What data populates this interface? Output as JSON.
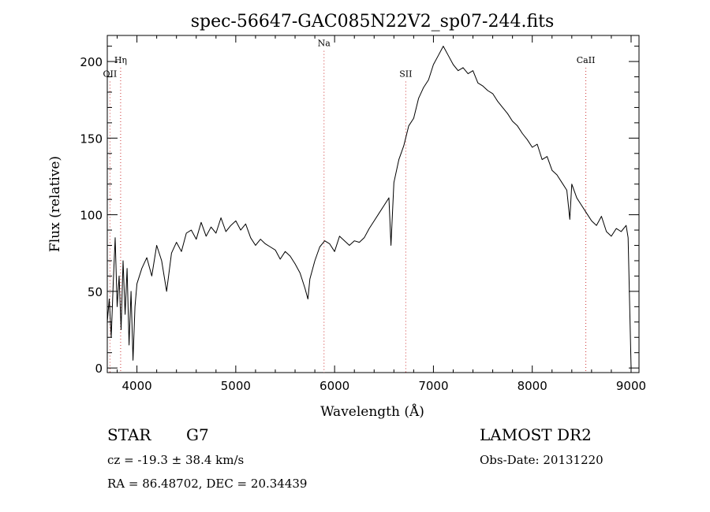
{
  "chart_data": {
    "type": "line",
    "title": "spec-56647-GAC085N22V2_sp07-244.fits",
    "xlabel": "Wavelength (Å)",
    "ylabel": "Flux (relative)",
    "xlim": [
      3700,
      9080
    ],
    "ylim": [
      -3,
      217
    ],
    "xticks": [
      4000,
      5000,
      6000,
      7000,
      8000,
      9000
    ],
    "yticks": [
      0,
      50,
      100,
      150,
      200
    ],
    "grid": false,
    "line_color": "#000000",
    "marker_line_color": "#cc3333",
    "spectral_lines": [
      {
        "label": "OII",
        "wavelength": 3727,
        "label_flux": 190
      },
      {
        "label": "Hη",
        "wavelength": 3835,
        "label_flux": 199
      },
      {
        "label": "Na",
        "wavelength": 5893,
        "label_flux": 210
      },
      {
        "label": "SII",
        "wavelength": 6720,
        "label_flux": 190
      },
      {
        "label": "CaII",
        "wavelength": 8542,
        "label_flux": 199
      }
    ],
    "series": [
      {
        "x": [
          3700,
          3720,
          3740,
          3760,
          3780,
          3800,
          3820,
          3840,
          3860,
          3880,
          3900,
          3920,
          3940,
          3960,
          3980,
          4000,
          4050,
          4100,
          4150,
          4200,
          4250,
          4300,
          4350,
          4400,
          4450,
          4500,
          4550,
          4600,
          4650,
          4700,
          4750,
          4800,
          4850,
          4900,
          4950,
          5000,
          5050,
          5100,
          5150,
          5200,
          5250,
          5300,
          5350,
          5400,
          5450,
          5500,
          5550,
          5600,
          5650,
          5700,
          5730,
          5750,
          5800,
          5850,
          5900,
          5950,
          6000,
          6050,
          6100,
          6150,
          6200,
          6250,
          6300,
          6350,
          6400,
          6450,
          6500,
          6550,
          6570,
          6600,
          6650,
          6700,
          6750,
          6800,
          6850,
          6900,
          6950,
          7000,
          7050,
          7100,
          7150,
          7200,
          7250,
          7300,
          7350,
          7400,
          7450,
          7500,
          7550,
          7600,
          7650,
          7700,
          7750,
          7800,
          7850,
          7900,
          7950,
          8000,
          8050,
          8100,
          8150,
          8200,
          8250,
          8300,
          8350,
          8380,
          8400,
          8450,
          8500,
          8550,
          8600,
          8650,
          8700,
          8750,
          8800,
          8850,
          8900,
          8950,
          8970,
          9000
        ],
        "y": [
          30,
          45,
          20,
          55,
          85,
          40,
          60,
          25,
          70,
          35,
          65,
          15,
          50,
          5,
          40,
          55,
          65,
          72,
          60,
          80,
          70,
          50,
          75,
          82,
          76,
          88,
          90,
          84,
          95,
          86,
          92,
          88,
          98,
          89,
          93,
          96,
          90,
          94,
          85,
          80,
          84,
          81,
          79,
          77,
          71,
          76,
          73,
          68,
          62,
          52,
          45,
          58,
          70,
          79,
          83,
          81,
          76,
          86,
          83,
          80,
          83,
          82,
          85,
          91,
          96,
          101,
          106,
          111,
          80,
          121,
          136,
          145,
          158,
          163,
          176,
          183,
          188,
          198,
          204,
          210,
          204,
          198,
          194,
          196,
          192,
          194,
          186,
          184,
          181,
          179,
          174,
          170,
          166,
          161,
          158,
          153,
          149,
          144,
          146,
          136,
          138,
          129,
          126,
          121,
          116,
          97,
          120,
          111,
          106,
          101,
          96,
          93,
          99,
          89,
          86,
          91,
          89,
          93,
          85,
          0
        ]
      }
    ]
  },
  "info": {
    "object_class": "STAR",
    "subclass": "G7",
    "survey": "LAMOST DR2",
    "redshift_line": "cz = -19.3 ± 38.4 km/s",
    "obs_date_line": "Obs-Date: 20131220",
    "coords_line": "RA =  86.48702, DEC =  20.34439"
  }
}
